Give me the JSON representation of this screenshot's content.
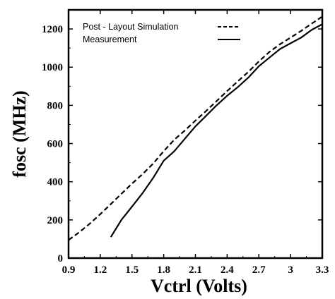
{
  "chart_data": {
    "type": "line",
    "title": "",
    "xlabel": "Vctrl (Volts)",
    "ylabel": "fosc (MHz)",
    "xlim": [
      0.9,
      3.3
    ],
    "ylim": [
      0,
      1300
    ],
    "x_ticks": [
      "0.9",
      "1.2",
      "1.5",
      "1.8",
      "2.1",
      "2.4",
      "2.7",
      "3",
      "3.3"
    ],
    "y_ticks": [
      "0",
      "200",
      "400",
      "600",
      "800",
      "1000",
      "1200"
    ],
    "grid": false,
    "legend_position": "top-left",
    "series": [
      {
        "name": "Post - Layout Simulation",
        "style": "dashed",
        "color": "#000000",
        "x": [
          0.9,
          1.0,
          1.1,
          1.2,
          1.3,
          1.4,
          1.5,
          1.6,
          1.7,
          1.8,
          1.9,
          2.0,
          2.1,
          2.2,
          2.3,
          2.4,
          2.5,
          2.6,
          2.7,
          2.8,
          2.9,
          3.0,
          3.1,
          3.2,
          3.3
        ],
        "y": [
          95,
          135,
          180,
          230,
          283,
          337,
          390,
          440,
          495,
          560,
          620,
          668,
          720,
          770,
          822,
          875,
          925,
          975,
          1030,
          1080,
          1120,
          1155,
          1190,
          1228,
          1265
        ]
      },
      {
        "name": "Measurement",
        "style": "solid",
        "color": "#000000",
        "x": [
          1.3,
          1.4,
          1.5,
          1.6,
          1.7,
          1.8,
          1.9,
          2.0,
          2.1,
          2.2,
          2.3,
          2.4,
          2.5,
          2.6,
          2.7,
          2.8,
          2.9,
          3.0,
          3.1,
          3.2,
          3.3
        ],
        "y": [
          110,
          200,
          270,
          340,
          420,
          510,
          560,
          625,
          690,
          745,
          800,
          850,
          895,
          945,
          1005,
          1050,
          1095,
          1125,
          1155,
          1195,
          1225
        ]
      }
    ]
  }
}
